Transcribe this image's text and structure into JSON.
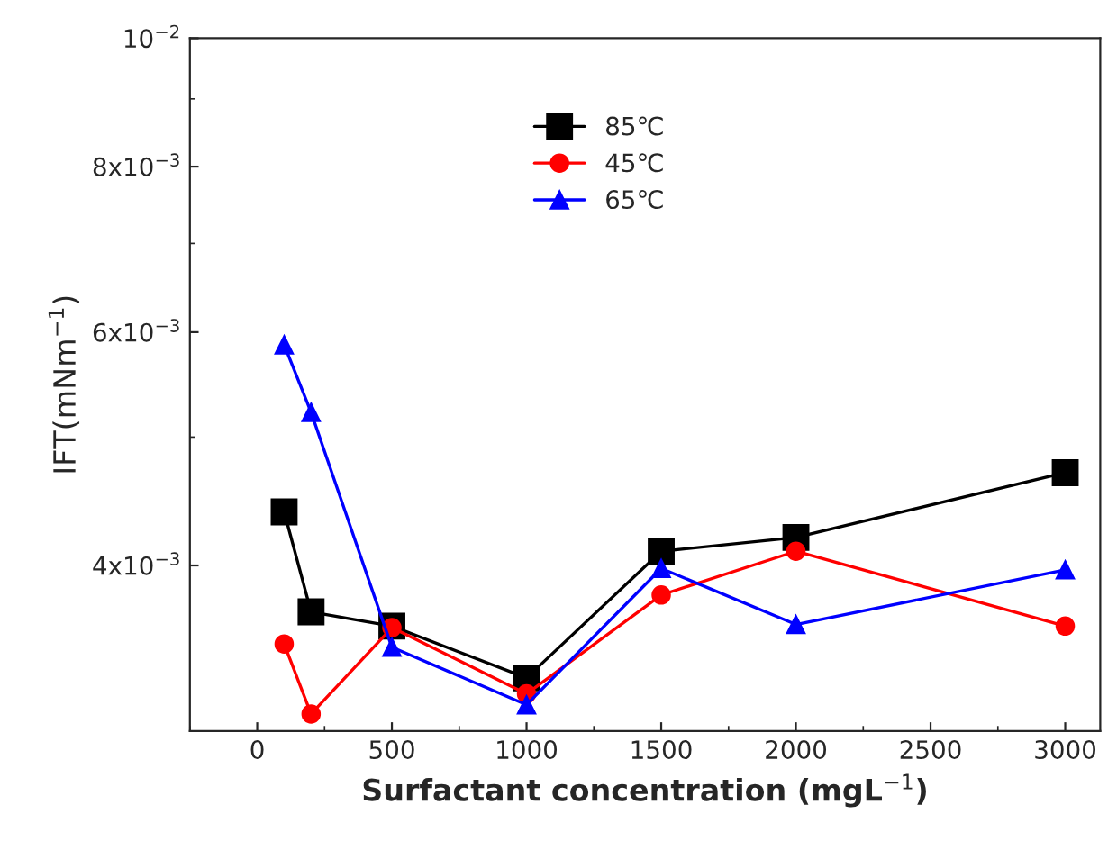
{
  "chart_data": {
    "type": "line",
    "xlabel": "Surfactant concentration (mgL$^{−1}$)",
    "ylabel": "IFT(mNm$^{−1}$)",
    "x": [
      100,
      200,
      500,
      1000,
      1500,
      2000,
      3000
    ],
    "series": [
      {
        "name": "85℃",
        "color": "#000000",
        "marker": "square",
        "values": [
          0.00439,
          0.00369,
          0.0036,
          0.00329,
          0.0041,
          0.0042,
          0.0047
        ]
      },
      {
        "name": "45℃",
        "color": "#ff0000",
        "marker": "circle",
        "values": [
          0.00349,
          0.00309,
          0.00359,
          0.0032,
          0.0038,
          0.0041,
          0.0036
        ]
      },
      {
        "name": "65℃",
        "color": "#0000ff",
        "marker": "triangle",
        "values": [
          0.00587,
          0.00522,
          0.00347,
          0.00314,
          0.00398,
          0.00361,
          0.00397
        ]
      }
    ],
    "log": "y",
    "xlim": [
      -250,
      3130
    ],
    "ylim": [
      0.003,
      0.01
    ],
    "xticks": [
      0,
      500,
      1000,
      1500,
      2000,
      2500,
      3000
    ],
    "yticks": [
      {
        "value": 0.004,
        "label": "4x10$^{−3}$"
      },
      {
        "value": 0.006,
        "label": "6x10$^{−3}$"
      },
      {
        "value": 0.008,
        "label": "8x10$^{−3}$"
      },
      {
        "value": 0.01,
        "label": "10$^{−2}$"
      }
    ],
    "grid": false,
    "legend": "top",
    "line_style": "solid"
  }
}
